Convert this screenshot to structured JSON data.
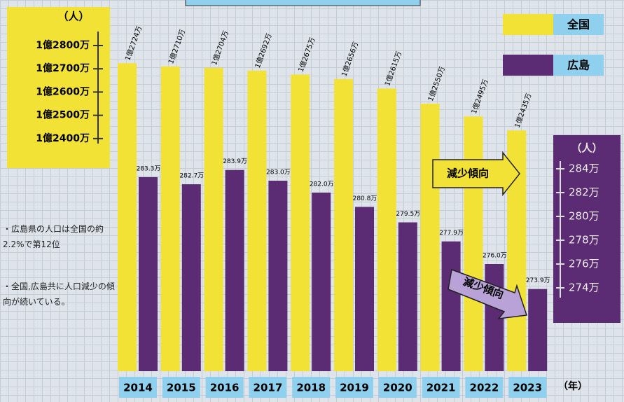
{
  "chart_data": {
    "type": "bar",
    "x_label": "（年）",
    "y_label": "（人）",
    "y2_label": "（人）",
    "categories": [
      "2014",
      "2015",
      "2016",
      "2017",
      "2018",
      "2019",
      "2020",
      "2021",
      "2022",
      "2023"
    ],
    "series": [
      {
        "name": "全国",
        "color": "#f2e236",
        "axis": "y",
        "values": [
          12724,
          12710,
          12704,
          12692,
          12675,
          12656,
          12615,
          12550,
          12495,
          12435
        ],
        "value_labels": [
          "1億2724万",
          "1億2710万",
          "1億2704万",
          "1億2692万",
          "1億2675万",
          "1億2656万",
          "1億2615万",
          "1億2550万",
          "1億2495万",
          "1億2435万"
        ]
      },
      {
        "name": "広島",
        "color": "#5b2b74",
        "axis": "y2",
        "values": [
          283.3,
          282.7,
          283.9,
          283.0,
          282.0,
          280.8,
          279.5,
          277.9,
          276.0,
          273.9
        ],
        "value_labels": [
          "283.3万",
          "282.7万",
          "283.9万",
          "283.0万",
          "282.0万",
          "280.8万",
          "279.5万",
          "277.9万",
          "276.0万",
          "273.9万"
        ]
      }
    ],
    "ylim": [
      11400,
      12800
    ],
    "yticks": [
      {
        "value": 12800,
        "label": "1億2800万"
      },
      {
        "value": 12700,
        "label": "1億2700万"
      },
      {
        "value": 12600,
        "label": "1億2600万"
      },
      {
        "value": 12500,
        "label": "1億2500万"
      },
      {
        "value": 12400,
        "label": "1億2400万"
      }
    ],
    "y2lim": [
      267,
      286
    ],
    "y2ticks": [
      {
        "value": 284,
        "label": "284万"
      },
      {
        "value": 282,
        "label": "282万"
      },
      {
        "value": 280,
        "label": "280万"
      },
      {
        "value": 278,
        "label": "278万"
      },
      {
        "value": 276,
        "label": "276万"
      },
      {
        "value": 274,
        "label": "274万"
      }
    ],
    "annotations": [
      "減少傾向",
      "減少傾向"
    ],
    "notes": [
      "・広島県の人口は全国の約2.2%で第12位",
      "・全国,広島共に人口減少の傾向が続いている。"
    ]
  }
}
